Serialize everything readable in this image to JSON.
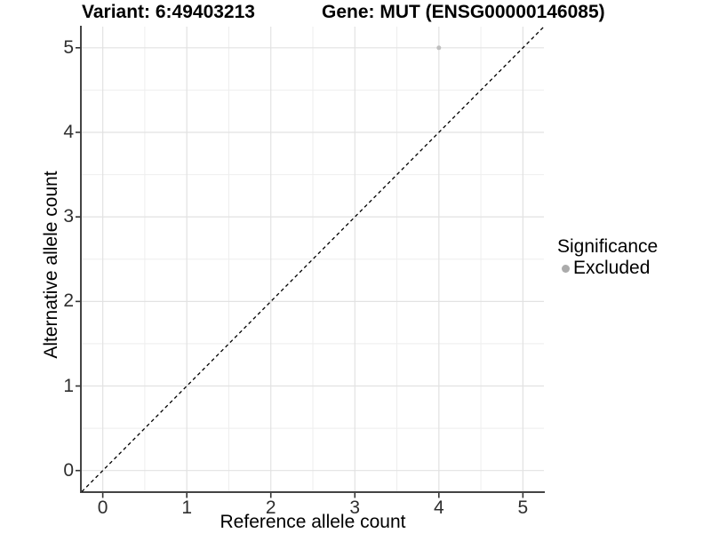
{
  "chart_data": {
    "type": "scatter",
    "title_variant": "Variant: 6:49403213",
    "title_gene": "Gene: MUT (ENSG00000146085)",
    "xlabel": "Reference allele count",
    "ylabel": "Alternative allele count",
    "xticks": [
      0,
      1,
      2,
      3,
      4,
      5
    ],
    "yticks": [
      0,
      1,
      2,
      3,
      4,
      5
    ],
    "xlim": [
      -0.25,
      5.25
    ],
    "ylim": [
      -0.25,
      5.25
    ],
    "grid": {
      "major": true,
      "minor": true
    },
    "series": [
      {
        "name": "Excluded",
        "color": "#bfbfbf",
        "points": [
          {
            "x": 4,
            "y": 5
          }
        ]
      }
    ],
    "reference_line": {
      "kind": "identity y=x",
      "from": [
        -0.25,
        -0.25
      ],
      "to": [
        5.25,
        5.25
      ],
      "style": "dashed",
      "color": "#000000"
    },
    "legend": {
      "title": "Significance",
      "position": "right",
      "items": [
        {
          "label": "Excluded",
          "color": "#ababab"
        }
      ]
    },
    "style": {
      "background": "#ffffff",
      "grid_major_color": "#e2e2e2",
      "grid_minor_color": "#eeeeee",
      "axis_line_color": "#444444",
      "tick_mark_color": "#333333",
      "tick_label_color": "#2e2e2e"
    }
  }
}
